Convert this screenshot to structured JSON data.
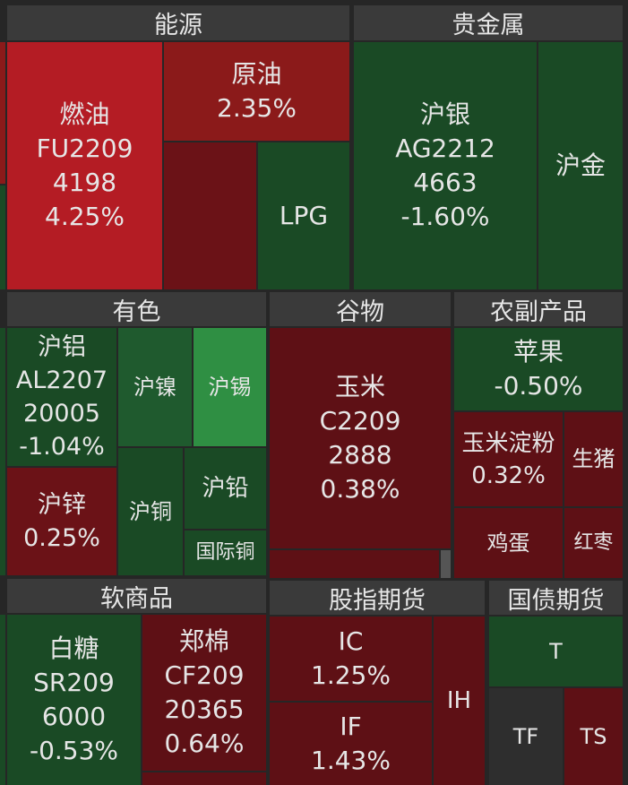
{
  "sectors": [
    {
      "name": "能源",
      "tiles": [
        {
          "name": "燃油",
          "code": "FU2209",
          "price": "4198",
          "change": "4.25%"
        },
        {
          "name": "原油",
          "change": "2.35%"
        },
        {
          "name": "LPG"
        }
      ]
    },
    {
      "name": "贵金属",
      "tiles": [
        {
          "name": "沪银",
          "code": "AG2212",
          "price": "4663",
          "change": "-1.60%"
        },
        {
          "name": "沪金"
        }
      ]
    },
    {
      "name": "有色",
      "tiles": [
        {
          "name": "沪铝",
          "code": "AL2207",
          "price": "20005",
          "change": "-1.04%"
        },
        {
          "name": "沪镍"
        },
        {
          "name": "沪锡"
        },
        {
          "name": "沪锌",
          "change": "0.25%"
        },
        {
          "name": "沪铜"
        },
        {
          "name": "沪铅"
        },
        {
          "name": "国际铜"
        }
      ]
    },
    {
      "name": "谷物",
      "tiles": [
        {
          "name": "玉米",
          "code": "C2209",
          "price": "2888",
          "change": "0.38%"
        }
      ]
    },
    {
      "name": "农副产品",
      "tiles": [
        {
          "name": "苹果",
          "change": "-0.50%"
        },
        {
          "name": "玉米淀粉",
          "change": "0.32%"
        },
        {
          "name": "生猪"
        },
        {
          "name": "鸡蛋"
        },
        {
          "name": "红枣"
        }
      ]
    },
    {
      "name": "软商品",
      "tiles": [
        {
          "name": "白糖",
          "code": "SR209",
          "price": "6000",
          "change": "-0.53%"
        },
        {
          "name": "郑棉",
          "code": "CF209",
          "price": "20365",
          "change": "0.64%"
        }
      ]
    },
    {
      "name": "股指期货",
      "tiles": [
        {
          "name": "IC",
          "change": "1.25%"
        },
        {
          "name": "IF",
          "change": "1.43%"
        },
        {
          "name": "IH"
        }
      ]
    },
    {
      "name": "国债期货",
      "tiles": [
        {
          "name": "T"
        },
        {
          "name": "TF"
        },
        {
          "name": "TS"
        }
      ]
    }
  ]
}
